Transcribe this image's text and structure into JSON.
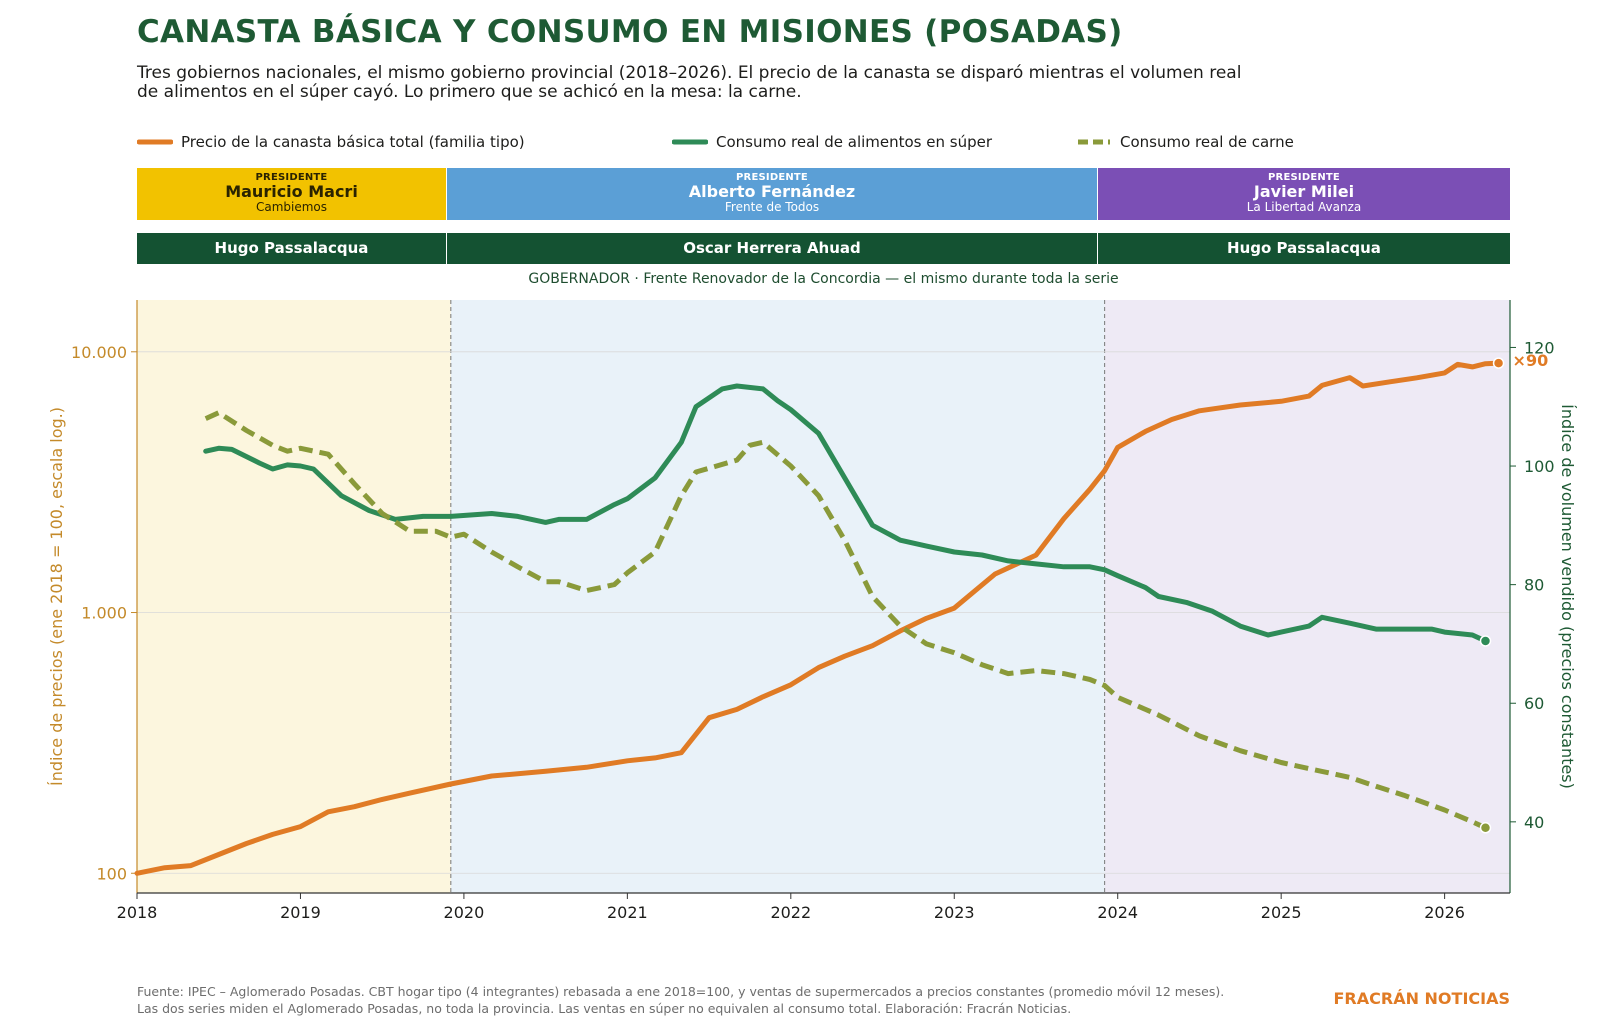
{
  "header": {
    "title": "CANASTA BÁSICA Y CONSUMO EN MISIONES (POSADAS)",
    "subtitle": "Tres gobiernos nacionales, el mismo gobierno provincial (2018–2026). El precio de la canasta se disparó mientras el volumen real de alimentos en el súper cayó. Lo primero que se achicó en la mesa: la carne."
  },
  "legend": {
    "price": "Precio de la canasta básica total (familia tipo)",
    "food": "Consumo real de alimentos en súper",
    "meat": "Consumo real de carne"
  },
  "presidents": [
    {
      "label": "PRESIDENTE",
      "name": "Mauricio Macri",
      "party": "Cambiemos"
    },
    {
      "label": "PRESIDENTE",
      "name": "Alberto Fernández",
      "party": "Frente de Todos"
    },
    {
      "label": "PRESIDENTE",
      "name": "Javier Milei",
      "party": "La Libertad Avanza"
    }
  ],
  "governors": [
    {
      "name": "Hugo Passalacqua"
    },
    {
      "name": "Oscar Herrera Ahuad"
    },
    {
      "name": "Hugo Passalacqua"
    }
  ],
  "governor_note": "GOBERNADOR · Frente Renovador de la Concordia — el mismo durante toda la serie",
  "footer": {
    "source_line1": "Fuente: IPEC – Aglomerado Posadas. CBT hogar tipo (4 integrantes) rebasada a ene 2018=100, y ventas de supermercados a precios constantes (promedio móvil 12 meses).",
    "source_line2": "Las dos series miden el Aglomerado Posadas, no toda la provincia. Las ventas en súper no equivalen al consumo total. Elaboración: Fracrán Noticias.",
    "brand": "FRACRÁN NOTICIAS"
  },
  "colors": {
    "title": "#1e5a34",
    "price": "#e07b25",
    "food": "#2e8b57",
    "meat": "#8a9a3a",
    "macri": "#f2c200",
    "fernandez": "#5b9fd6",
    "milei": "#7b4fb5",
    "governor": "#145232",
    "band_macri": "#fcf6de",
    "band_fernandez": "#e9f2f9",
    "band_milei": "#eeeaf5"
  },
  "chart_data": {
    "type": "line",
    "x_axis": {
      "label": "",
      "ticks": [
        "2018",
        "2019",
        "2020",
        "2021",
        "2022",
        "2023",
        "2024",
        "2025",
        "2026"
      ],
      "range": [
        2018.0,
        2026.4
      ]
    },
    "y_left": {
      "label": "Índice de precios  (ene 2018 = 100, escala log.)",
      "scale": "log",
      "ticks": [
        "100",
        "1.000",
        "10.000"
      ],
      "range": [
        84,
        15800
      ]
    },
    "y_right": {
      "label": "Índice de volumen vendido  (precios constantes)",
      "ticks": [
        "40",
        "60",
        "80",
        "100",
        "120"
      ],
      "range": [
        28,
        128
      ]
    },
    "periods": [
      {
        "name": "Mauricio Macri",
        "from": 2018.0,
        "to": 2019.92
      },
      {
        "name": "Alberto Fernández",
        "from": 2019.92,
        "to": 2023.92
      },
      {
        "name": "Javier Milei",
        "from": 2023.92,
        "to": 2026.4
      }
    ],
    "end_label": "×90",
    "series": [
      {
        "name": "Precio de la canasta básica total (familia tipo)",
        "axis": "left",
        "points": [
          [
            2018.0,
            100
          ],
          [
            2018.17,
            105
          ],
          [
            2018.33,
            107
          ],
          [
            2018.5,
            118
          ],
          [
            2018.67,
            130
          ],
          [
            2018.83,
            141
          ],
          [
            2019.0,
            151
          ],
          [
            2019.17,
            172
          ],
          [
            2019.33,
            180
          ],
          [
            2019.5,
            192
          ],
          [
            2019.67,
            203
          ],
          [
            2019.92,
            220
          ],
          [
            2020.17,
            236
          ],
          [
            2020.5,
            246
          ],
          [
            2020.75,
            255
          ],
          [
            2021.0,
            270
          ],
          [
            2021.17,
            277
          ],
          [
            2021.33,
            290
          ],
          [
            2021.5,
            395
          ],
          [
            2021.67,
            425
          ],
          [
            2021.83,
            475
          ],
          [
            2022.0,
            528
          ],
          [
            2022.17,
            615
          ],
          [
            2022.33,
            680
          ],
          [
            2022.5,
            746
          ],
          [
            2022.67,
            850
          ],
          [
            2022.83,
            950
          ],
          [
            2023.0,
            1040
          ],
          [
            2023.25,
            1405
          ],
          [
            2023.5,
            1660
          ],
          [
            2023.67,
            2290
          ],
          [
            2023.83,
            2970
          ],
          [
            2023.92,
            3500
          ],
          [
            2024.0,
            4300
          ],
          [
            2024.17,
            4950
          ],
          [
            2024.33,
            5500
          ],
          [
            2024.5,
            5940
          ],
          [
            2024.75,
            6250
          ],
          [
            2025.0,
            6460
          ],
          [
            2025.17,
            6760
          ],
          [
            2025.25,
            7430
          ],
          [
            2025.42,
            7960
          ],
          [
            2025.5,
            7390
          ],
          [
            2025.67,
            7680
          ],
          [
            2025.83,
            7950
          ],
          [
            2026.0,
            8300
          ],
          [
            2026.08,
            8950
          ],
          [
            2026.17,
            8750
          ],
          [
            2026.25,
            9000
          ],
          [
            2026.33,
            9050
          ]
        ]
      },
      {
        "name": "Consumo real de alimentos en súper",
        "axis": "right",
        "points": [
          [
            2018.42,
            102.5
          ],
          [
            2018.5,
            103
          ],
          [
            2018.58,
            102.8
          ],
          [
            2018.75,
            100.5
          ],
          [
            2018.83,
            99.5
          ],
          [
            2018.92,
            100.2
          ],
          [
            2019.0,
            100
          ],
          [
            2019.08,
            99.5
          ],
          [
            2019.25,
            95
          ],
          [
            2019.42,
            92.5
          ],
          [
            2019.58,
            91
          ],
          [
            2019.75,
            91.5
          ],
          [
            2019.92,
            91.5
          ],
          [
            2020.17,
            92
          ],
          [
            2020.33,
            91.5
          ],
          [
            2020.5,
            90.5
          ],
          [
            2020.58,
            91
          ],
          [
            2020.75,
            91
          ],
          [
            2020.92,
            93.5
          ],
          [
            2021.0,
            94.5
          ],
          [
            2021.17,
            98
          ],
          [
            2021.33,
            104
          ],
          [
            2021.42,
            110
          ],
          [
            2021.58,
            113
          ],
          [
            2021.67,
            113.5
          ],
          [
            2021.83,
            113
          ],
          [
            2021.92,
            111
          ],
          [
            2022.0,
            109.5
          ],
          [
            2022.17,
            105.5
          ],
          [
            2022.33,
            98
          ],
          [
            2022.5,
            90
          ],
          [
            2022.67,
            87.5
          ],
          [
            2022.83,
            86.5
          ],
          [
            2023.0,
            85.5
          ],
          [
            2023.17,
            85
          ],
          [
            2023.33,
            84
          ],
          [
            2023.5,
            83.5
          ],
          [
            2023.67,
            83
          ],
          [
            2023.83,
            83
          ],
          [
            2023.92,
            82.5
          ],
          [
            2024.0,
            81.5
          ],
          [
            2024.17,
            79.5
          ],
          [
            2024.25,
            78
          ],
          [
            2024.42,
            77
          ],
          [
            2024.58,
            75.5
          ],
          [
            2024.75,
            73
          ],
          [
            2024.92,
            71.5
          ],
          [
            2025.0,
            72
          ],
          [
            2025.17,
            73
          ],
          [
            2025.25,
            74.5
          ],
          [
            2025.42,
            73.5
          ],
          [
            2025.58,
            72.5
          ],
          [
            2025.75,
            72.5
          ],
          [
            2025.92,
            72.5
          ],
          [
            2026.0,
            72
          ],
          [
            2026.17,
            71.5
          ],
          [
            2026.25,
            70.5
          ]
        ]
      },
      {
        "name": "Consumo real de carne",
        "axis": "right",
        "points": [
          [
            2018.42,
            108
          ],
          [
            2018.5,
            109
          ],
          [
            2018.67,
            106
          ],
          [
            2018.83,
            103.5
          ],
          [
            2018.92,
            102.5
          ],
          [
            2019.0,
            103
          ],
          [
            2019.17,
            102
          ],
          [
            2019.33,
            97
          ],
          [
            2019.5,
            92
          ],
          [
            2019.67,
            89
          ],
          [
            2019.83,
            89
          ],
          [
            2019.92,
            88
          ],
          [
            2020.0,
            88.5
          ],
          [
            2020.17,
            85.5
          ],
          [
            2020.33,
            83
          ],
          [
            2020.5,
            80.5
          ],
          [
            2020.58,
            80.5
          ],
          [
            2020.75,
            79
          ],
          [
            2020.92,
            80
          ],
          [
            2021.0,
            82
          ],
          [
            2021.17,
            85.5
          ],
          [
            2021.33,
            95
          ],
          [
            2021.42,
            99
          ],
          [
            2021.67,
            101
          ],
          [
            2021.75,
            103.5
          ],
          [
            2021.83,
            104
          ],
          [
            2022.0,
            100
          ],
          [
            2022.17,
            95
          ],
          [
            2022.33,
            87.5
          ],
          [
            2022.5,
            78
          ],
          [
            2022.67,
            73
          ],
          [
            2022.83,
            70
          ],
          [
            2023.0,
            68.5
          ],
          [
            2023.17,
            66.5
          ],
          [
            2023.33,
            65
          ],
          [
            2023.5,
            65.5
          ],
          [
            2023.67,
            65
          ],
          [
            2023.83,
            64
          ],
          [
            2023.92,
            63
          ],
          [
            2024.0,
            61
          ],
          [
            2024.25,
            58
          ],
          [
            2024.5,
            54.5
          ],
          [
            2024.75,
            52
          ],
          [
            2025.0,
            50
          ],
          [
            2025.25,
            48.5
          ],
          [
            2025.42,
            47.5
          ],
          [
            2025.58,
            46
          ],
          [
            2025.75,
            44.5
          ],
          [
            2026.0,
            42
          ],
          [
            2026.17,
            40
          ],
          [
            2026.25,
            39
          ]
        ]
      }
    ]
  }
}
